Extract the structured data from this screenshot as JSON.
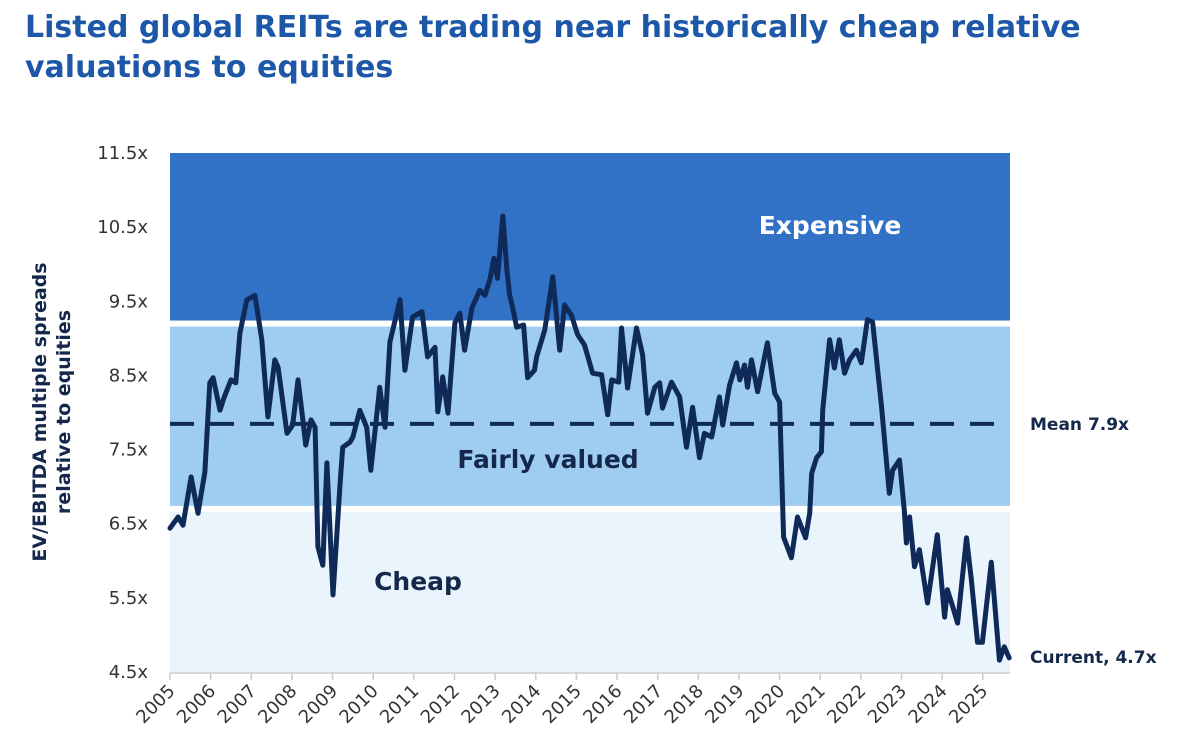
{
  "chart_data": {
    "type": "line",
    "title": "Listed global REITs are trading near historically cheap relative valuations to equities",
    "ylabel_lines": [
      "EV/EBITDA multiple spreads",
      "relative to equities"
    ],
    "ylim": [
      4.5,
      11.5
    ],
    "yticks": [
      "4.5x",
      "5.5x",
      "6.5x",
      "7.5x",
      "8.5x",
      "9.5x",
      "10.5x",
      "11.5x"
    ],
    "ytick_values": [
      4.5,
      5.5,
      6.5,
      7.5,
      8.5,
      9.5,
      10.5,
      11.5
    ],
    "xlim": [
      2005,
      2025.67
    ],
    "xticks": [
      2005,
      2006,
      2007,
      2008,
      2009,
      2010,
      2011,
      2012,
      2013,
      2014,
      2015,
      2016,
      2017,
      2018,
      2019,
      2020,
      2021,
      2022,
      2023,
      2024,
      2025
    ],
    "grid": false,
    "bands": [
      {
        "label": "Expensive",
        "from": 9.2,
        "to": 11.5,
        "color": "#3171c6",
        "text_color": "#ffffff"
      },
      {
        "label": "Fairly valued",
        "from": 6.7,
        "to": 9.2,
        "color": "#9fcdf2",
        "text_color": "#14284b"
      },
      {
        "label": "Cheap",
        "from": 4.5,
        "to": 6.7,
        "color": "#eaf4fc",
        "text_color": "#14284b"
      }
    ],
    "mean": {
      "value": 7.9,
      "label": "Mean 7.9x"
    },
    "current": {
      "value": 4.7,
      "label": "Current, 4.7x"
    },
    "line_color": "#0f2a58",
    "series": [
      {
        "x": [
          2005.0,
          2005.2,
          2005.32,
          2005.52,
          2005.69,
          2005.86,
          2005.98,
          2006.06,
          2006.23,
          2006.33,
          2006.5,
          2006.62,
          2006.72,
          2006.89,
          2007.09,
          2007.26,
          2007.41,
          2007.58,
          2007.66,
          2007.88,
          2008.02,
          2008.15,
          2008.27,
          2008.34,
          2008.47,
          2008.57,
          2008.64,
          2008.76,
          2008.86,
          2009.01,
          2009.18,
          2009.25,
          2009.43,
          2009.5,
          2009.67,
          2009.84,
          2009.94,
          2010.16,
          2010.29,
          2010.41,
          2010.66,
          2010.78,
          2010.97,
          2011.2,
          2011.34,
          2011.52,
          2011.59,
          2011.71,
          2011.84,
          2012.01,
          2012.13,
          2012.25,
          2012.43,
          2012.62,
          2012.75,
          2012.87,
          2012.97,
          2013.06,
          2013.19,
          2013.29,
          2013.36,
          2013.43,
          2013.53,
          2013.7,
          2013.8,
          2013.97,
          2014.02,
          2014.22,
          2014.42,
          2014.59,
          2014.71,
          2014.88,
          2015.03,
          2015.2,
          2015.4,
          2015.62,
          2015.77,
          2015.87,
          2016.04,
          2016.11,
          2016.26,
          2016.48,
          2016.63,
          2016.75,
          2016.93,
          2017.05,
          2017.12,
          2017.34,
          2017.54,
          2017.71,
          2017.86,
          2018.03,
          2018.15,
          2018.33,
          2018.52,
          2018.6,
          2018.77,
          2018.94,
          2019.02,
          2019.14,
          2019.21,
          2019.31,
          2019.46,
          2019.7,
          2019.88,
          2020.0,
          2020.1,
          2020.29,
          2020.44,
          2020.64,
          2020.74,
          2020.79,
          2020.91,
          2021.03,
          2021.06,
          2021.23,
          2021.35,
          2021.47,
          2021.6,
          2021.72,
          2021.89,
          2022.01,
          2022.16,
          2022.29,
          2022.51,
          2022.7,
          2022.78,
          2022.95,
          2023.07,
          2023.12,
          2023.2,
          2023.32,
          2023.44,
          2023.64,
          2023.88,
          2024.06,
          2024.13,
          2024.25,
          2024.38,
          2024.6,
          2024.72,
          2024.87,
          2024.99,
          2025.21,
          2025.41,
          2025.53,
          2025.65
        ],
        "y": [
          6.44,
          6.59,
          6.48,
          7.13,
          6.64,
          7.2,
          8.4,
          8.47,
          8.03,
          8.2,
          8.44,
          8.4,
          9.07,
          9.52,
          9.58,
          8.98,
          7.94,
          8.71,
          8.61,
          7.72,
          7.83,
          8.44,
          7.9,
          7.56,
          7.9,
          7.8,
          6.19,
          5.94,
          7.32,
          5.54,
          7.0,
          7.53,
          7.6,
          7.67,
          8.03,
          7.8,
          7.22,
          8.34,
          7.8,
          8.95,
          9.52,
          8.57,
          9.29,
          9.36,
          8.75,
          8.88,
          8.01,
          8.48,
          7.99,
          9.21,
          9.34,
          8.84,
          9.41,
          9.65,
          9.58,
          9.79,
          10.08,
          9.81,
          10.65,
          9.92,
          9.58,
          9.42,
          9.15,
          9.18,
          8.47,
          8.57,
          8.75,
          9.11,
          9.83,
          8.84,
          9.45,
          9.31,
          9.05,
          8.91,
          8.53,
          8.51,
          7.97,
          8.44,
          8.41,
          9.14,
          8.33,
          9.14,
          8.78,
          7.99,
          8.34,
          8.4,
          8.06,
          8.41,
          8.21,
          7.53,
          8.07,
          7.39,
          7.72,
          7.67,
          8.21,
          7.83,
          8.37,
          8.67,
          8.44,
          8.64,
          8.34,
          8.71,
          8.28,
          8.94,
          8.26,
          8.14,
          6.32,
          6.04,
          6.59,
          6.31,
          6.64,
          7.18,
          7.39,
          7.47,
          8.03,
          8.98,
          8.6,
          8.98,
          8.53,
          8.71,
          8.84,
          8.67,
          9.25,
          9.22,
          8.07,
          6.91,
          7.22,
          7.36,
          6.68,
          6.24,
          6.59,
          5.92,
          6.15,
          5.43,
          6.35,
          5.24,
          5.61,
          5.4,
          5.16,
          6.31,
          5.74,
          4.9,
          4.9,
          5.98,
          4.66,
          4.84,
          4.69
        ]
      }
    ]
  }
}
